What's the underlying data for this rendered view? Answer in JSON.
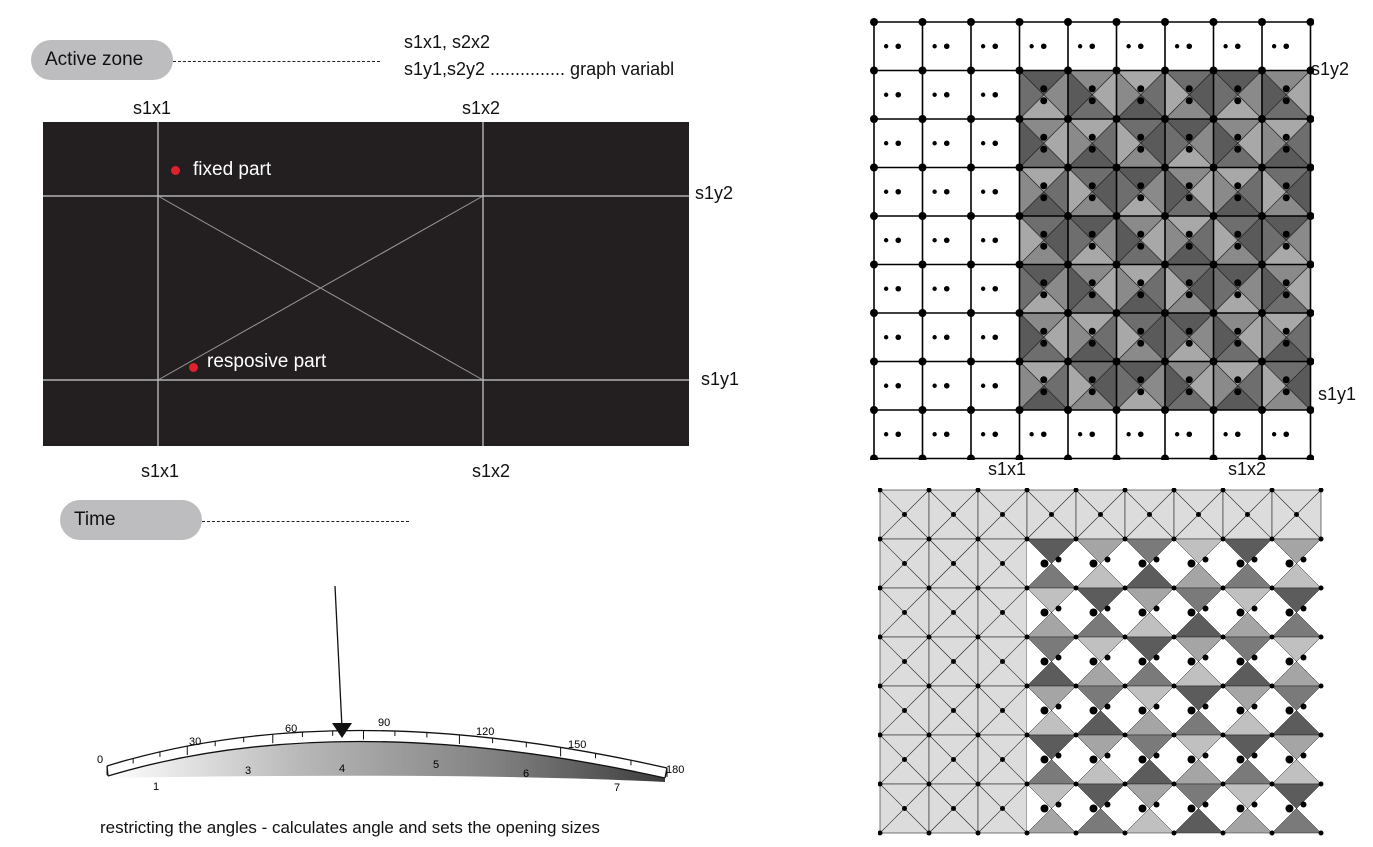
{
  "active_zone": {
    "pill_label": "Active zone",
    "vars_line1": "s1x1, s2x2",
    "vars_line2": "s1y1,s2y2  ............... graph variabl",
    "top_left_col": "s1x1",
    "top_right_col": "s1x2",
    "bottom_left_col": "s1x1",
    "bottom_right_col": "s1x2",
    "row_upper": "s1y2",
    "row_lower": "s1y1",
    "fixed_label": "fixed part",
    "responsive_label": "resposive  part",
    "point_color": "#e0202a"
  },
  "time": {
    "pill_label": "Time",
    "scale_angles": [
      "0",
      "30",
      "60",
      "90",
      "120",
      "150",
      "180"
    ],
    "scale_steps": [
      "1",
      "3",
      "4",
      "5",
      "6",
      "7"
    ],
    "caption": "restricting the angles - calculates angle and sets the opening sizes"
  },
  "panel_top_labels": {
    "right_upper": "s1y2",
    "right_lower": "s1y1",
    "bottom_left": "s1x1",
    "bottom_right": "s1x2"
  }
}
